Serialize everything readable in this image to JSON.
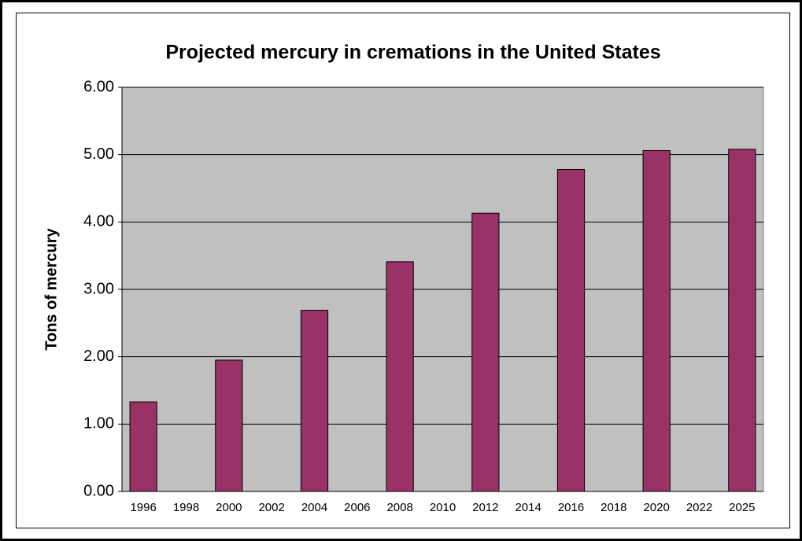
{
  "chart_data": {
    "type": "bar",
    "title": "Projected mercury in cremations in the United States",
    "y_label": "Tons of mercury",
    "categories": [
      "1996",
      "1998",
      "2000",
      "2002",
      "2004",
      "2006",
      "2008",
      "2010",
      "2012",
      "2014",
      "2016",
      "2018",
      "2020",
      "2022",
      "2025"
    ],
    "values": [
      1.33,
      null,
      1.95,
      null,
      2.69,
      null,
      3.41,
      null,
      4.13,
      null,
      4.78,
      null,
      5.06,
      null,
      5.08
    ],
    "color": "#993366",
    "ylim": [
      0,
      6
    ],
    "yticks": [
      {
        "value": 0,
        "label": "0.00"
      },
      {
        "value": 1,
        "label": "1.00"
      },
      {
        "value": 2,
        "label": "2.00"
      },
      {
        "value": 3,
        "label": "3.00"
      },
      {
        "value": 4,
        "label": "4.00"
      },
      {
        "value": 5,
        "label": "5.00"
      },
      {
        "value": 6,
        "label": "6.00"
      }
    ],
    "grid": true
  }
}
